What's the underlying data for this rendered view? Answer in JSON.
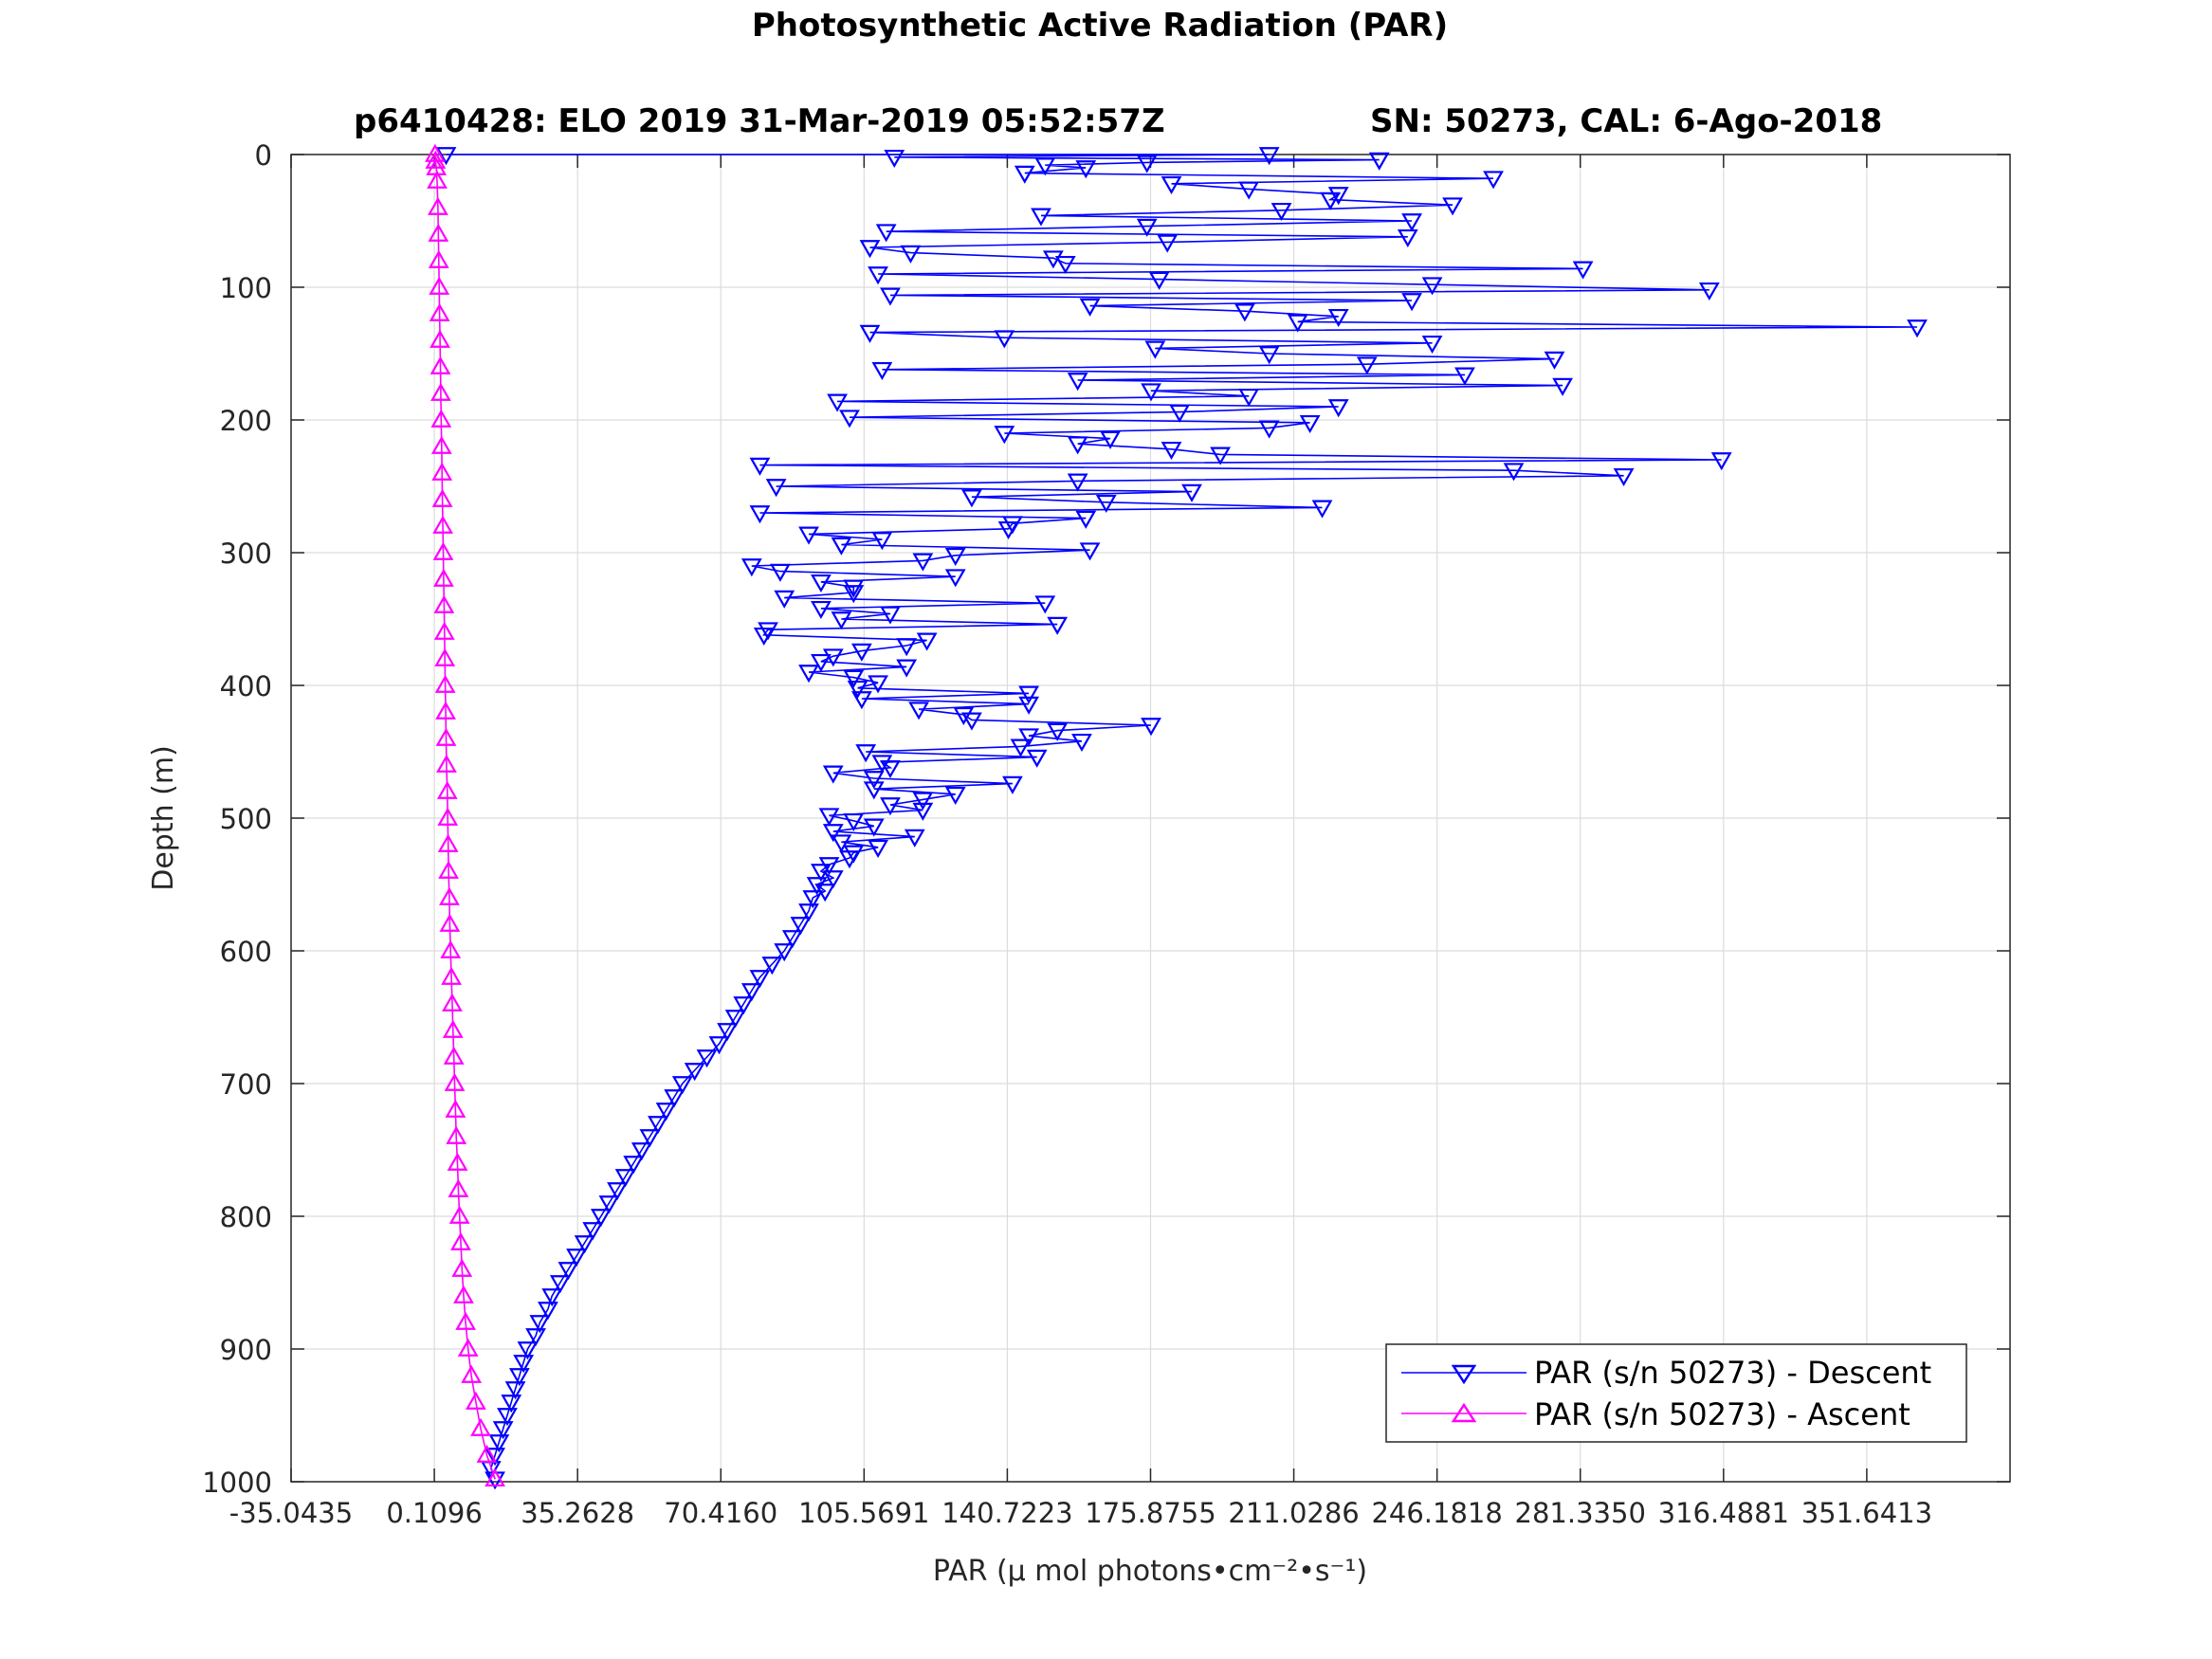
{
  "colors": {
    "descent": "#0000ff",
    "ascent": "#ff00ff",
    "grid": "#dcdcdc",
    "axis": "#262626"
  },
  "chart_data": {
    "type": "line",
    "title": "Photosynthetic Active Radiation (PAR)",
    "subtitle_left": "p6410428: ELO 2019 31-Mar-2019 05:52:57Z",
    "subtitle_right": "SN: 50273, CAL: 6-Ago-2018",
    "xlabel": "PAR (μ mol photons•cm⁻²•s⁻¹)",
    "ylabel": "Depth (m)",
    "xlim": [
      -35.0435,
      386.8
    ],
    "ylim": [
      0,
      1000
    ],
    "y_reversed": true,
    "grid": true,
    "x_ticks": [
      -35.0435,
      0.1096,
      35.2628,
      70.416,
      105.5691,
      140.7223,
      175.8755,
      211.0286,
      246.1818,
      281.335,
      316.4881,
      351.6413
    ],
    "x_tick_labels": [
      "-35.0435",
      "0.1096",
      "35.2628",
      "70.4160",
      "105.5691",
      "140.7223",
      "175.8755",
      "211.0286",
      "246.1818",
      "281.3350",
      "316.4881",
      "351.6413"
    ],
    "y_ticks": [
      0,
      100,
      200,
      300,
      400,
      500,
      600,
      700,
      800,
      900,
      1000
    ],
    "y_tick_labels": [
      "0",
      "100",
      "200",
      "300",
      "400",
      "500",
      "600",
      "700",
      "800",
      "900",
      "1000"
    ],
    "legend_position": "bottom-right",
    "series": [
      {
        "name": "PAR (s/n 50273) - Descent",
        "marker": "triangle-down",
        "depth": [
          0,
          0,
          2,
          4,
          6,
          8,
          10,
          14,
          18,
          22,
          26,
          30,
          34,
          38,
          42,
          46,
          50,
          54,
          58,
          62,
          66,
          70,
          74,
          78,
          82,
          86,
          90,
          94,
          98,
          102,
          106,
          110,
          114,
          118,
          122,
          126,
          130,
          134,
          138,
          142,
          146,
          150,
          154,
          158,
          162,
          166,
          170,
          174,
          178,
          182,
          186,
          190,
          194,
          198,
          202,
          206,
          210,
          214,
          218,
          222,
          226,
          230,
          234,
          238,
          242,
          246,
          250,
          254,
          258,
          262,
          266,
          270,
          274,
          278,
          282,
          286,
          290,
          294,
          298,
          302,
          306,
          310,
          314,
          318,
          322,
          326,
          330,
          334,
          338,
          342,
          346,
          350,
          354,
          358,
          362,
          366,
          370,
          374,
          378,
          382,
          386,
          390,
          394,
          398,
          402,
          406,
          410,
          414,
          418,
          422,
          426,
          430,
          434,
          438,
          442,
          446,
          450,
          454,
          458,
          462,
          466,
          470,
          474,
          478,
          482,
          486,
          490,
          494,
          498,
          502,
          506,
          510,
          514,
          518,
          522,
          526,
          530,
          535,
          540,
          545,
          550,
          555,
          560,
          570,
          580,
          590,
          600,
          610,
          620,
          630,
          640,
          650,
          660,
          670,
          680,
          690,
          700,
          710,
          720,
          730,
          740,
          750,
          760,
          770,
          780,
          790,
          800,
          810,
          820,
          830,
          840,
          850,
          860,
          870,
          880,
          890,
          900,
          910,
          920,
          930,
          940,
          950,
          960,
          970,
          980,
          990,
          998
        ],
        "par": [
          3,
          205,
          113,
          232,
          175,
          150,
          160,
          145,
          260,
          181,
          200,
          222,
          220,
          250,
          208,
          149,
          240,
          175,
          111,
          239,
          180,
          107,
          117,
          152,
          155,
          282,
          109,
          178,
          245,
          313,
          112,
          240,
          161,
          199,
          222,
          212,
          364,
          107,
          140,
          245,
          177,
          205,
          275,
          229,
          110,
          253,
          158,
          277,
          176,
          200,
          99,
          222,
          183,
          102,
          215,
          205,
          140,
          166,
          158,
          181,
          193,
          316,
          80,
          265,
          292,
          158,
          84,
          186,
          132,
          165,
          218,
          80,
          160,
          142,
          141,
          92,
          110,
          100,
          161,
          128,
          120,
          78,
          85,
          128,
          95,
          103,
          103,
          86,
          150,
          95,
          112,
          100,
          153,
          82,
          81,
          121,
          116,
          105,
          98,
          95,
          116,
          92,
          103,
          109,
          104,
          146,
          105,
          146,
          119,
          130,
          132,
          176,
          153,
          146,
          159,
          144,
          106,
          148,
          110,
          112,
          98,
          108,
          142,
          108,
          128,
          120,
          112,
          120,
          97,
          103,
          108,
          98,
          118,
          100,
          109,
          103,
          102,
          97,
          95,
          98,
          94,
          96,
          93,
          92,
          90,
          88,
          86,
          83,
          80,
          78,
          76,
          74,
          72,
          70,
          67,
          64,
          61,
          59,
          57,
          55,
          53,
          51,
          49,
          47,
          45,
          43,
          41,
          39,
          37,
          35,
          33,
          31,
          29,
          28,
          26,
          25,
          23,
          22,
          21,
          20,
          19,
          18,
          17,
          16,
          15,
          14,
          15
        ]
      },
      {
        "name": "PAR (s/n 50273) - Ascent",
        "marker": "triangle-up",
        "depth": [
          998,
          980,
          960,
          940,
          920,
          900,
          880,
          860,
          840,
          820,
          800,
          780,
          760,
          740,
          720,
          700,
          680,
          660,
          640,
          620,
          600,
          580,
          560,
          540,
          520,
          500,
          480,
          460,
          440,
          420,
          400,
          380,
          360,
          340,
          320,
          300,
          280,
          260,
          240,
          220,
          200,
          180,
          160,
          140,
          120,
          100,
          80,
          60,
          40,
          20,
          10,
          5,
          0
        ],
        "par": [
          15,
          13,
          11.5,
          10.3,
          9.2,
          8.4,
          7.8,
          7.3,
          6.9,
          6.6,
          6.3,
          6.0,
          5.8,
          5.5,
          5.3,
          5.1,
          4.9,
          4.7,
          4.5,
          4.3,
          4.1,
          3.9,
          3.8,
          3.6,
          3.5,
          3.4,
          3.3,
          3.1,
          3.0,
          2.9,
          2.8,
          2.7,
          2.6,
          2.5,
          2.4,
          2.3,
          2.2,
          2.1,
          2.0,
          1.9,
          1.8,
          1.7,
          1.6,
          1.5,
          1.4,
          1.3,
          1.2,
          1.1,
          1.0,
          0.8,
          0.6,
          0.4,
          0.3
        ]
      }
    ]
  }
}
